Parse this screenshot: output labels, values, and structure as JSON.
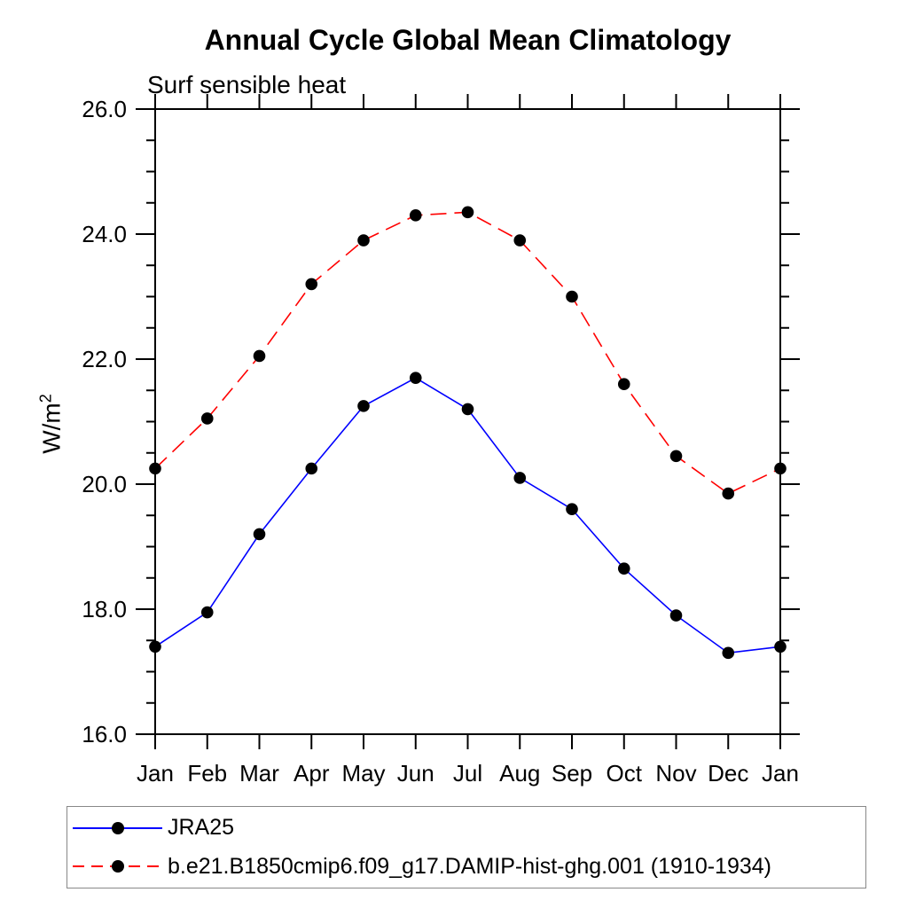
{
  "page": {
    "background": "#ffffff"
  },
  "header": {
    "title": "Annual Cycle Global Mean Climatology",
    "subtitle": "Surf sensible heat"
  },
  "y_axis": {
    "label_base": "W/m",
    "label_exponent": "2",
    "tick_labels": [
      "16.0",
      "18.0",
      "20.0",
      "22.0",
      "24.0",
      "26.0"
    ]
  },
  "chart_data": {
    "type": "line",
    "title": "Annual Cycle Global Mean Climatology",
    "subtitle": "Surf sensible heat",
    "xlabel": "",
    "ylabel": "W/m^2",
    "categories": [
      "Jan",
      "Feb",
      "Mar",
      "Apr",
      "May",
      "Jun",
      "Jul",
      "Aug",
      "Sep",
      "Oct",
      "Nov",
      "Dec",
      "Jan"
    ],
    "series": [
      {
        "name": "JRA25",
        "color": "#0000ff",
        "line_style": "solid",
        "marker": "filled-black-circle",
        "values": [
          17.4,
          17.95,
          19.2,
          20.25,
          21.25,
          21.7,
          21.2,
          20.1,
          19.6,
          18.65,
          17.9,
          17.3,
          17.4
        ]
      },
      {
        "name": "b.e21.B1850cmip6.f09_g17.DAMIP-hist-ghg.001 (1910-1934)",
        "color": "#ff0000",
        "line_style": "dashed",
        "marker": "filled-black-circle",
        "values": [
          20.25,
          21.05,
          22.05,
          23.2,
          23.9,
          24.3,
          24.35,
          23.9,
          23.0,
          21.6,
          20.45,
          19.85,
          20.25
        ]
      }
    ],
    "ylim": [
      16.0,
      26.0
    ],
    "ytick_major": 2.0,
    "ytick_minor": 0.5,
    "ytick_labels": [
      "16.0",
      "18.0",
      "20.0",
      "22.0",
      "24.0",
      "26.0"
    ],
    "grid": false,
    "frame": "box-with-outward-ticks",
    "axis_color": "#000000",
    "marker_color": "#000000",
    "legend_position": "bottom-left-box"
  },
  "legend": {
    "items": [
      {
        "label": "JRA25",
        "color": "#0000ff",
        "line_style": "solid",
        "marker": "filled-black-circle"
      },
      {
        "label": "b.e21.B1850cmip6.f09_g17.DAMIP-hist-ghg.001 (1910-1934)",
        "color": "#ff0000",
        "line_style": "dashed",
        "marker": "filled-black-circle"
      }
    ]
  }
}
